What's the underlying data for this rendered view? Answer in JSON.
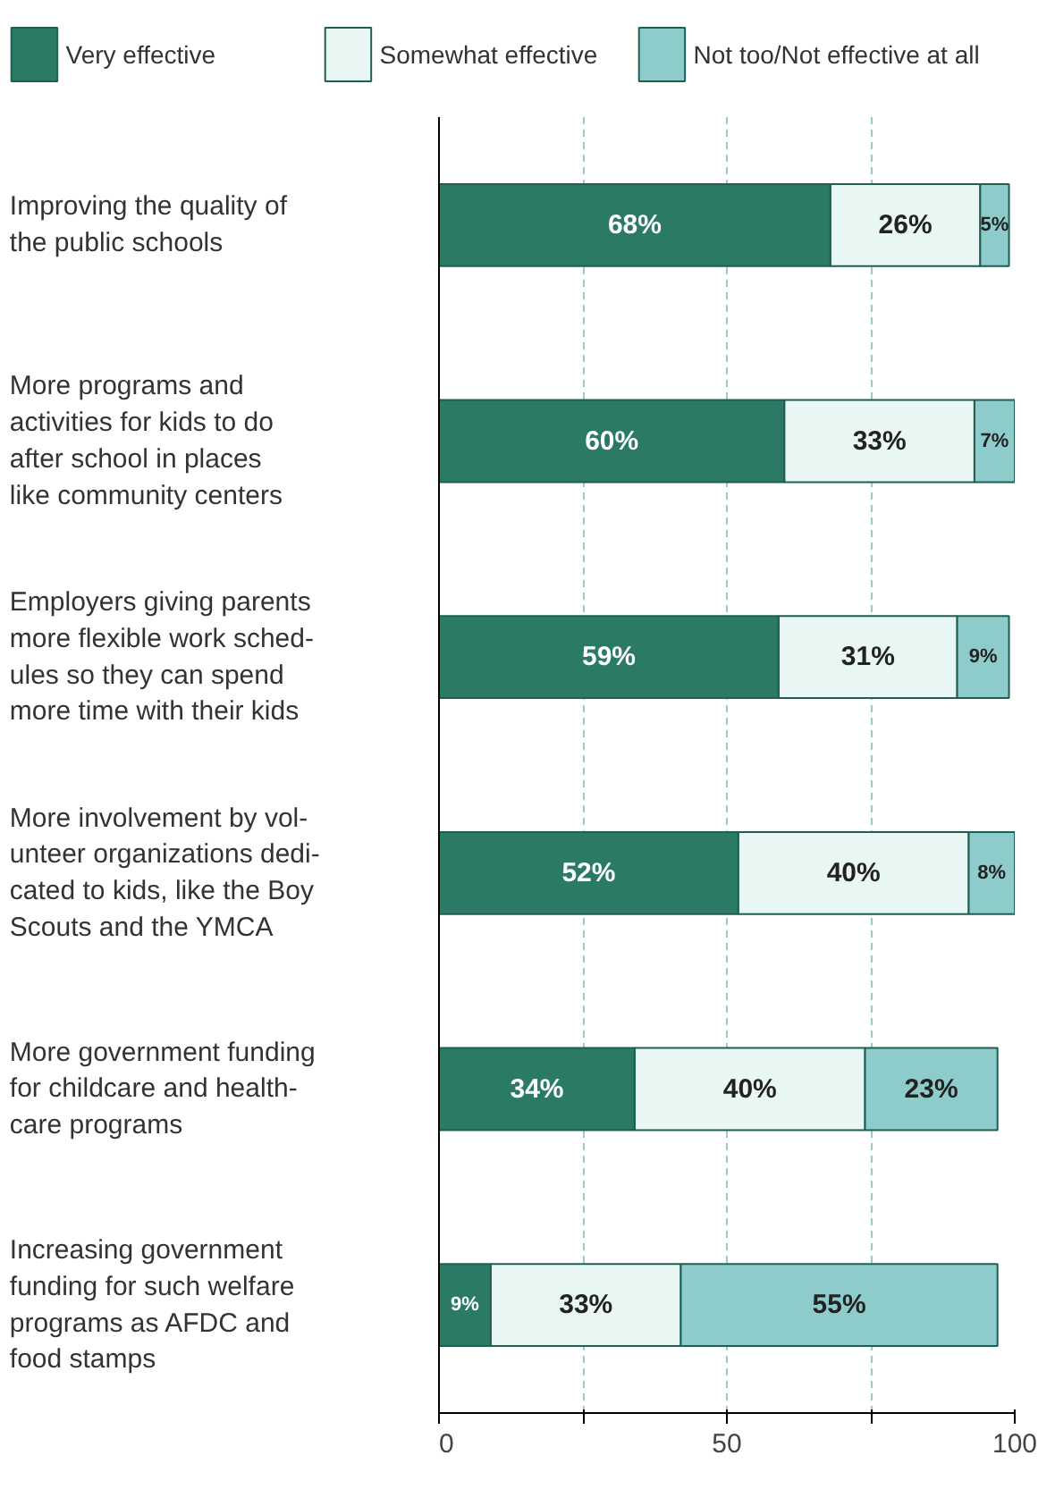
{
  "chart_data": {
    "type": "bar",
    "orientation": "horizontal",
    "stacked": true,
    "categories": [
      "Improving the quality of\nthe public schools",
      "More programs and\nactivities for kids to do\nafter school in places\nlike community centers",
      "Employers giving parents\nmore flexible work sched-\nules so they can spend\nmore time with their kids",
      "More involvement by vol-\nunteer organizations dedi-\ncated to kids, like the Boy\nScouts and the YMCA",
      "More government funding\nfor childcare and health-\ncare programs",
      "Increasing government\nfunding for such welfare\nprograms as AFDC and\nfood stamps"
    ],
    "series": [
      {
        "name": "Very effective",
        "color": "#2a7a66",
        "values": [
          68,
          60,
          59,
          52,
          34,
          9
        ],
        "value_labels": [
          "68%",
          "60%",
          "59%",
          "52%",
          "34%",
          "9%"
        ]
      },
      {
        "name": "Somewhat effective",
        "color": "#e8f6f4",
        "values": [
          26,
          33,
          31,
          40,
          40,
          33
        ],
        "value_labels": [
          "26%",
          "33%",
          "31%",
          "40%",
          "40%",
          "33%"
        ]
      },
      {
        "name": "Not too/Not effective at all",
        "color": "#8ecccc",
        "values": [
          5,
          7,
          9,
          8,
          23,
          55
        ],
        "value_labels": [
          "5%",
          "7%",
          "9%",
          "8%",
          "23%",
          "55%"
        ]
      }
    ],
    "xlim": [
      0,
      100
    ],
    "xticks": [
      0,
      {
        "value": 25,
        "label": null
      },
      50,
      {
        "value": 75,
        "label": null
      },
      100
    ],
    "grid": "x",
    "legend": "top"
  }
}
